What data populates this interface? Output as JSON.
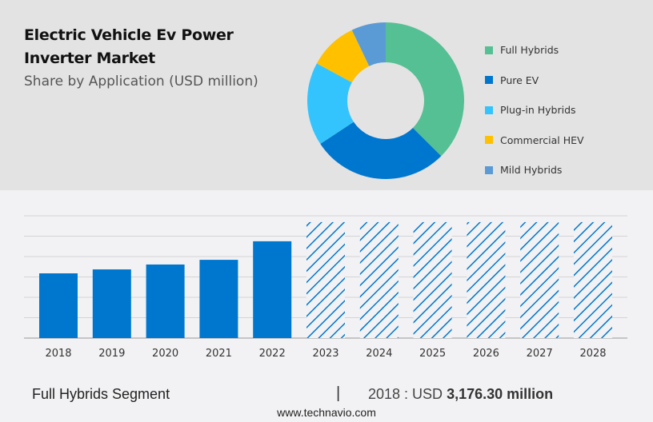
{
  "header": {
    "title_line1": "Electric Vehicle Ev Power",
    "title_line2": "Inverter Market",
    "subtitle": "Share by Application (USD million)"
  },
  "chart_data": [
    {
      "type": "pie",
      "variant": "donut",
      "labels": [
        "Full Hybrids",
        "Pure EV",
        "Plug-in Hybrids",
        "Commercial HEV",
        "Mild Hybrids"
      ],
      "values": [
        37.5,
        28.2,
        17.2,
        10.0,
        7.1
      ],
      "colors": [
        "#55c093",
        "#0077cf",
        "#33c4fe",
        "#ffc000",
        "#5b9bd5"
      ],
      "legend": "right"
    },
    {
      "type": "bar",
      "categories": [
        "2018",
        "2019",
        "2020",
        "2021",
        "2022",
        "2023",
        "2024",
        "2025",
        "2026",
        "2027",
        "2028"
      ],
      "values": [
        3176.3,
        3370,
        3610,
        3840,
        4750,
        5690,
        5690,
        5690,
        5690,
        5690,
        5690
      ],
      "forecast": [
        false,
        false,
        false,
        false,
        false,
        true,
        true,
        true,
        true,
        true,
        true
      ],
      "color": "#0077cf",
      "ylim": [
        0,
        6000
      ],
      "grid": true,
      "ytick_step": 1000
    }
  ],
  "footer": {
    "segment": "Full Hybrids Segment",
    "separator": "|",
    "year_label": "2018 : USD ",
    "value": "3,176.30 million",
    "website": "www.technavio.com"
  }
}
